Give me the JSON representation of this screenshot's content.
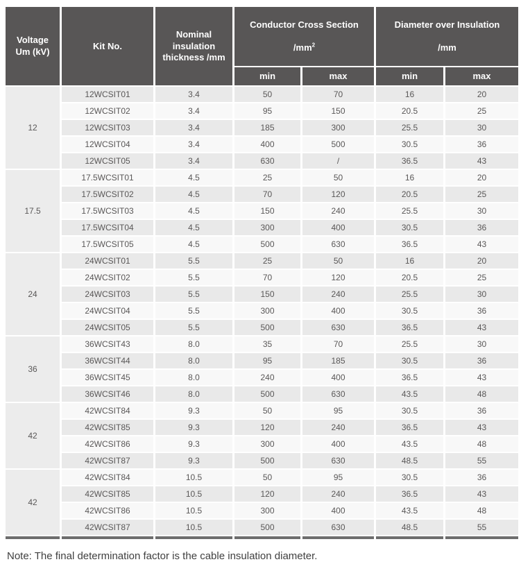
{
  "header": {
    "voltage": "Voltage\nUm (kV)",
    "kit_no": "Kit No.",
    "insulation_thickness": "Nominal insulation\nthickness /mm",
    "conductor_cross_section": "Conductor Cross Section",
    "conductor_cross_section_unit": "/mm",
    "conductor_cross_section_exponent": "2",
    "diameter_over_insulation": "Diameter over Insulation",
    "diameter_over_insulation_unit": "/mm",
    "min_label": "min",
    "max_label": "max"
  },
  "groups": [
    {
      "voltage": "12",
      "rows": [
        {
          "kit": "12WCSIT01",
          "thickness": "3.4",
          "cs_min": "50",
          "cs_max": "70",
          "d_min": "16",
          "d_max": "20"
        },
        {
          "kit": "12WCSIT02",
          "thickness": "3.4",
          "cs_min": "95",
          "cs_max": "150",
          "d_min": "20.5",
          "d_max": "25"
        },
        {
          "kit": "12WCSIT03",
          "thickness": "3.4",
          "cs_min": "185",
          "cs_max": "300",
          "d_min": "25.5",
          "d_max": "30"
        },
        {
          "kit": "12WCSIT04",
          "thickness": "3.4",
          "cs_min": "400",
          "cs_max": "500",
          "d_min": "30.5",
          "d_max": "36"
        },
        {
          "kit": "12WCSIT05",
          "thickness": "3.4",
          "cs_min": "630",
          "cs_max": "/",
          "d_min": "36.5",
          "d_max": "43"
        }
      ]
    },
    {
      "voltage": "17.5",
      "rows": [
        {
          "kit": "17.5WCSIT01",
          "thickness": "4.5",
          "cs_min": "25",
          "cs_max": "50",
          "d_min": "16",
          "d_max": "20"
        },
        {
          "kit": "17.5WCSIT02",
          "thickness": "4.5",
          "cs_min": "70",
          "cs_max": "120",
          "d_min": "20.5",
          "d_max": "25"
        },
        {
          "kit": "17.5WCSIT03",
          "thickness": "4.5",
          "cs_min": "150",
          "cs_max": "240",
          "d_min": "25.5",
          "d_max": "30"
        },
        {
          "kit": "17.5WCSIT04",
          "thickness": "4.5",
          "cs_min": "300",
          "cs_max": "400",
          "d_min": "30.5",
          "d_max": "36"
        },
        {
          "kit": "17.5WCSIT05",
          "thickness": "4.5",
          "cs_min": "500",
          "cs_max": "630",
          "d_min": "36.5",
          "d_max": "43"
        }
      ]
    },
    {
      "voltage": "24",
      "rows": [
        {
          "kit": "24WCSIT01",
          "thickness": "5.5",
          "cs_min": "25",
          "cs_max": "50",
          "d_min": "16",
          "d_max": "20"
        },
        {
          "kit": "24WCSIT02",
          "thickness": "5.5",
          "cs_min": "70",
          "cs_max": "120",
          "d_min": "20.5",
          "d_max": "25"
        },
        {
          "kit": "24WCSIT03",
          "thickness": "5.5",
          "cs_min": "150",
          "cs_max": "240",
          "d_min": "25.5",
          "d_max": "30"
        },
        {
          "kit": "24WCSIT04",
          "thickness": "5.5",
          "cs_min": "300",
          "cs_max": "400",
          "d_min": "30.5",
          "d_max": "36"
        },
        {
          "kit": "24WCSIT05",
          "thickness": "5.5",
          "cs_min": "500",
          "cs_max": "630",
          "d_min": "36.5",
          "d_max": "43"
        }
      ]
    },
    {
      "voltage": "36",
      "rows": [
        {
          "kit": "36WCSIT43",
          "thickness": "8.0",
          "cs_min": "35",
          "cs_max": "70",
          "d_min": "25.5",
          "d_max": "30"
        },
        {
          "kit": "36WCSIT44",
          "thickness": "8.0",
          "cs_min": "95",
          "cs_max": "185",
          "d_min": "30.5",
          "d_max": "36"
        },
        {
          "kit": "36WCSIT45",
          "thickness": "8.0",
          "cs_min": "240",
          "cs_max": "400",
          "d_min": "36.5",
          "d_max": "43"
        },
        {
          "kit": "36WCSIT46",
          "thickness": "8.0",
          "cs_min": "500",
          "cs_max": "630",
          "d_min": "43.5",
          "d_max": "48"
        }
      ]
    },
    {
      "voltage": "42",
      "rows": [
        {
          "kit": "42WCSIT84",
          "thickness": "9.3",
          "cs_min": "50",
          "cs_max": "95",
          "d_min": "30.5",
          "d_max": "36"
        },
        {
          "kit": "42WCSIT85",
          "thickness": "9.3",
          "cs_min": "120",
          "cs_max": "240",
          "d_min": "36.5",
          "d_max": "43"
        },
        {
          "kit": "42WCSIT86",
          "thickness": "9.3",
          "cs_min": "300",
          "cs_max": "400",
          "d_min": "43.5",
          "d_max": "48"
        },
        {
          "kit": "42WCSIT87",
          "thickness": "9.3",
          "cs_min": "500",
          "cs_max": "630",
          "d_min": "48.5",
          "d_max": "55"
        }
      ]
    },
    {
      "voltage": "42",
      "rows": [
        {
          "kit": "42WCSIT84",
          "thickness": "10.5",
          "cs_min": "50",
          "cs_max": "95",
          "d_min": "30.5",
          "d_max": "36"
        },
        {
          "kit": "42WCSIT85",
          "thickness": "10.5",
          "cs_min": "120",
          "cs_max": "240",
          "d_min": "36.5",
          "d_max": "43"
        },
        {
          "kit": "42WCSIT86",
          "thickness": "10.5",
          "cs_min": "300",
          "cs_max": "400",
          "d_min": "43.5",
          "d_max": "48"
        },
        {
          "kit": "42WCSIT87",
          "thickness": "10.5",
          "cs_min": "500",
          "cs_max": "630",
          "d_min": "48.5",
          "d_max": "55"
        }
      ]
    }
  ],
  "note": "Note: The final determination factor is the cable insulation diameter.",
  "colors": {
    "header_bg": "#585656",
    "header_text": "#ffffff",
    "row_odd_bg": "#e9e9e9",
    "row_even_bg": "#f8f8f8",
    "voltage_cell_bg": "#ececec",
    "cell_text": "#595757",
    "bottom_bar": "#6d6d6d",
    "note_text": "#3f3f3f"
  }
}
